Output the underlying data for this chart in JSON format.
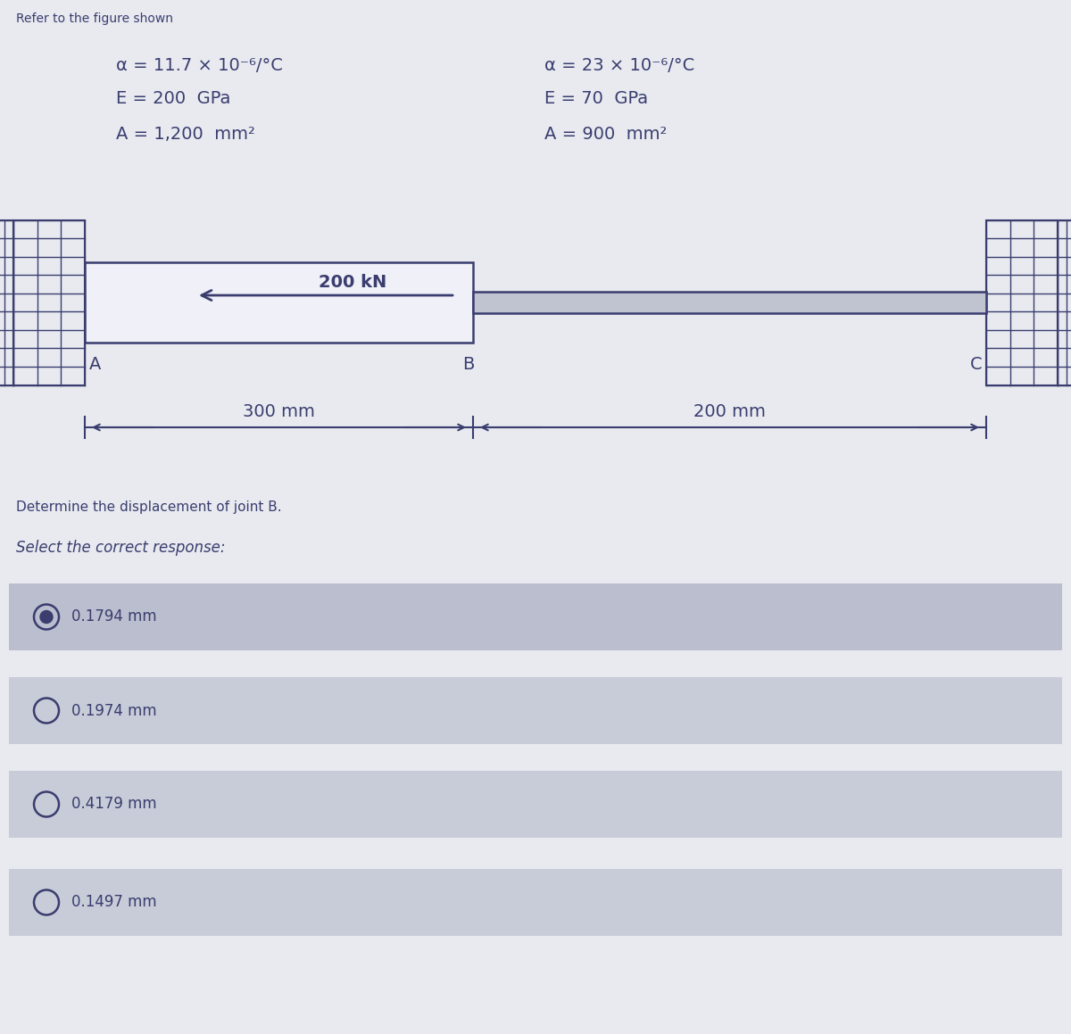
{
  "bg_color": "#e8eaf0",
  "title_text": "Refer to the figure shown",
  "left_props_line1": "α = 11.7 × 10⁻⁶/°C",
  "left_props_line2": "E = 200  GPa",
  "left_props_line3": "A = 1,200  mm²",
  "right_props_line1": "α = 23 × 10⁻⁶/°C",
  "right_props_line2": "E = 70  GPa",
  "right_props_line3": "A = 900  mm²",
  "force_label": "200 kN",
  "dim_left": "300 mm",
  "dim_right": "200 mm",
  "point_a": "A",
  "point_b": "B",
  "point_c": "C",
  "question": "Determine the displacement of joint B.",
  "select_text": "Select the correct response:",
  "options": [
    "0.1794 mm",
    "0.1974 mm",
    "0.4179 mm",
    "0.1497 mm"
  ],
  "option_selected": 0,
  "text_color": "#3a3d6e",
  "option_bg": "#c8ccd8",
  "option_bg_alt": "#bbbece",
  "bar_fill": "#f0f0f8",
  "thin_bar_fill": "#c0c4d0",
  "wall_fill": "#f0f0f8",
  "wall_line_color": "#3a3d6e",
  "outline_color": "#3a3d6e"
}
